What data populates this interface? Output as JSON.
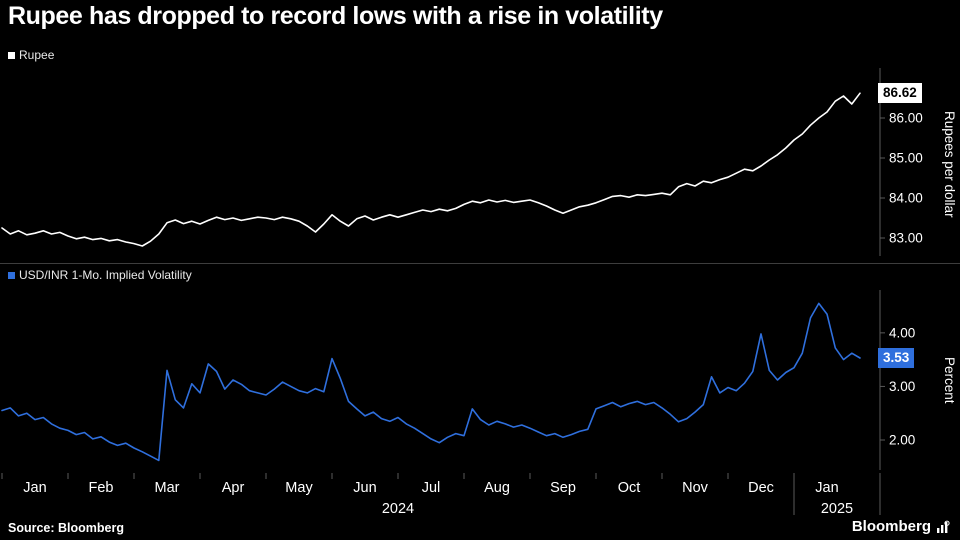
{
  "title": "Rupee has dropped to record lows with a rise in volatility",
  "source": "Source: Bloomberg",
  "brand": "Bloomberg",
  "colors": {
    "background": "#000000",
    "rupee_line": "#ffffff",
    "vol_line": "#2f6fdd",
    "axis": "#5a5a5a",
    "divider": "#3d3d3d",
    "text": "#ffffff"
  },
  "x_axis": {
    "month_labels": [
      "Jan",
      "Feb",
      "Mar",
      "Apr",
      "May",
      "Jun",
      "Jul",
      "Aug",
      "Sep",
      "Oct",
      "Nov",
      "Dec",
      "Jan"
    ],
    "year_labels": [
      "2024",
      "2025"
    ],
    "points_per_month": 8
  },
  "chart_data": [
    {
      "type": "line",
      "title": "Rupee",
      "ylabel": "Rupees per dollar",
      "legend_position": "top-left",
      "grid": false,
      "yticks": [
        83,
        84,
        85,
        86
      ],
      "ytick_labels": [
        "83.00",
        "84.00",
        "85.00",
        "86.00"
      ],
      "ylim": [
        82.55,
        87.25
      ],
      "last_value_label": "86.62",
      "x_range": "Jan 2024 - Jan 2025",
      "values": [
        83.25,
        83.1,
        83.18,
        83.08,
        83.12,
        83.18,
        83.1,
        83.14,
        83.05,
        82.98,
        83.02,
        82.96,
        82.99,
        82.93,
        82.96,
        82.9,
        82.86,
        82.8,
        82.92,
        83.1,
        83.38,
        83.45,
        83.36,
        83.42,
        83.35,
        83.44,
        83.52,
        83.46,
        83.5,
        83.44,
        83.48,
        83.52,
        83.5,
        83.46,
        83.52,
        83.48,
        83.42,
        83.3,
        83.15,
        83.35,
        83.58,
        83.42,
        83.3,
        83.48,
        83.55,
        83.45,
        83.52,
        83.58,
        83.52,
        83.58,
        83.64,
        83.7,
        83.66,
        83.72,
        83.68,
        83.74,
        83.84,
        83.92,
        83.88,
        83.95,
        83.9,
        83.94,
        83.89,
        83.92,
        83.95,
        83.88,
        83.8,
        83.7,
        83.62,
        83.7,
        83.78,
        83.82,
        83.88,
        83.96,
        84.04,
        84.06,
        84.02,
        84.08,
        84.06,
        84.09,
        84.12,
        84.08,
        84.28,
        84.36,
        84.3,
        84.42,
        84.38,
        84.46,
        84.52,
        84.62,
        84.72,
        84.68,
        84.8,
        84.95,
        85.08,
        85.25,
        85.45,
        85.6,
        85.82,
        86.0,
        86.15,
        86.42,
        86.55,
        86.35,
        86.62
      ]
    },
    {
      "type": "line",
      "title": "USD/INR 1-Mo. Implied Volatility",
      "ylabel": "Percent",
      "legend_position": "top-left",
      "grid": false,
      "yticks": [
        2,
        3,
        4
      ],
      "ytick_labels": [
        "2.00",
        "3.00",
        "4.00"
      ],
      "ylim": [
        1.44,
        4.8
      ],
      "last_value_label": "3.53",
      "x_range": "Jan 2024 - Jan 2025",
      "values": [
        2.55,
        2.6,
        2.45,
        2.5,
        2.38,
        2.42,
        2.3,
        2.22,
        2.18,
        2.1,
        2.14,
        2.02,
        2.06,
        1.96,
        1.9,
        1.94,
        1.85,
        1.78,
        1.7,
        1.62,
        3.3,
        2.75,
        2.6,
        3.05,
        2.88,
        3.42,
        3.28,
        2.95,
        3.12,
        3.04,
        2.92,
        2.88,
        2.84,
        2.95,
        3.08,
        3.0,
        2.92,
        2.88,
        2.96,
        2.9,
        3.52,
        3.15,
        2.72,
        2.58,
        2.45,
        2.52,
        2.4,
        2.35,
        2.42,
        2.3,
        2.22,
        2.12,
        2.02,
        1.95,
        2.05,
        2.12,
        2.08,
        2.58,
        2.38,
        2.28,
        2.35,
        2.3,
        2.24,
        2.28,
        2.22,
        2.15,
        2.08,
        2.12,
        2.05,
        2.1,
        2.16,
        2.2,
        2.58,
        2.64,
        2.7,
        2.62,
        2.68,
        2.72,
        2.66,
        2.7,
        2.6,
        2.48,
        2.34,
        2.4,
        2.52,
        2.66,
        3.18,
        2.88,
        2.98,
        2.92,
        3.06,
        3.28,
        3.98,
        3.3,
        3.12,
        3.26,
        3.35,
        3.62,
        4.28,
        4.55,
        4.35,
        3.72,
        3.5,
        3.62,
        3.53
      ]
    }
  ]
}
